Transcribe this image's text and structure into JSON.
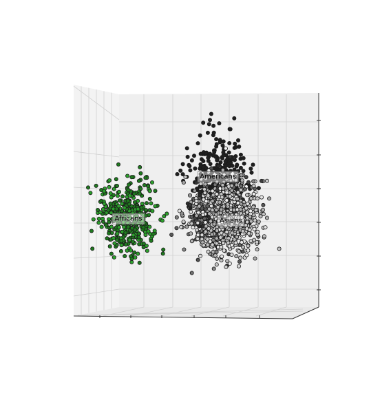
{
  "chart_data": {
    "type": "scatter",
    "projection": "3d",
    "title": "",
    "xlabel": "",
    "ylabel": "",
    "zlabel": "",
    "grid": true,
    "legend": "none",
    "background": "#ffffff",
    "pane_color": "#f0f0f0",
    "clusters": [
      {
        "name": "Africans",
        "label": "Africans",
        "color": "#2ca02c",
        "center": [
          0.15,
          0.58
        ],
        "spread": [
          0.07,
          0.085
        ],
        "count": 420,
        "seed": 11
      },
      {
        "name": "Americans",
        "label": "Americans",
        "color": "#202020",
        "center": [
          0.57,
          0.38
        ],
        "spread": [
          0.065,
          0.1
        ],
        "count": 330,
        "seed": 23
      },
      {
        "name": "Asians",
        "label": "Asians",
        "color": "#cccccc",
        "center": [
          0.63,
          0.59
        ],
        "spread": [
          0.075,
          0.08
        ],
        "count": 520,
        "seed": 37
      }
    ],
    "mixed_points": {
      "color_range": [
        "#202020",
        "#ffffff"
      ],
      "center": [
        0.58,
        0.56
      ],
      "spread": [
        0.08,
        0.09
      ],
      "count": 600,
      "seed": 53
    },
    "xlim": [
      0,
      1
    ],
    "ylim": [
      0,
      1
    ]
  }
}
